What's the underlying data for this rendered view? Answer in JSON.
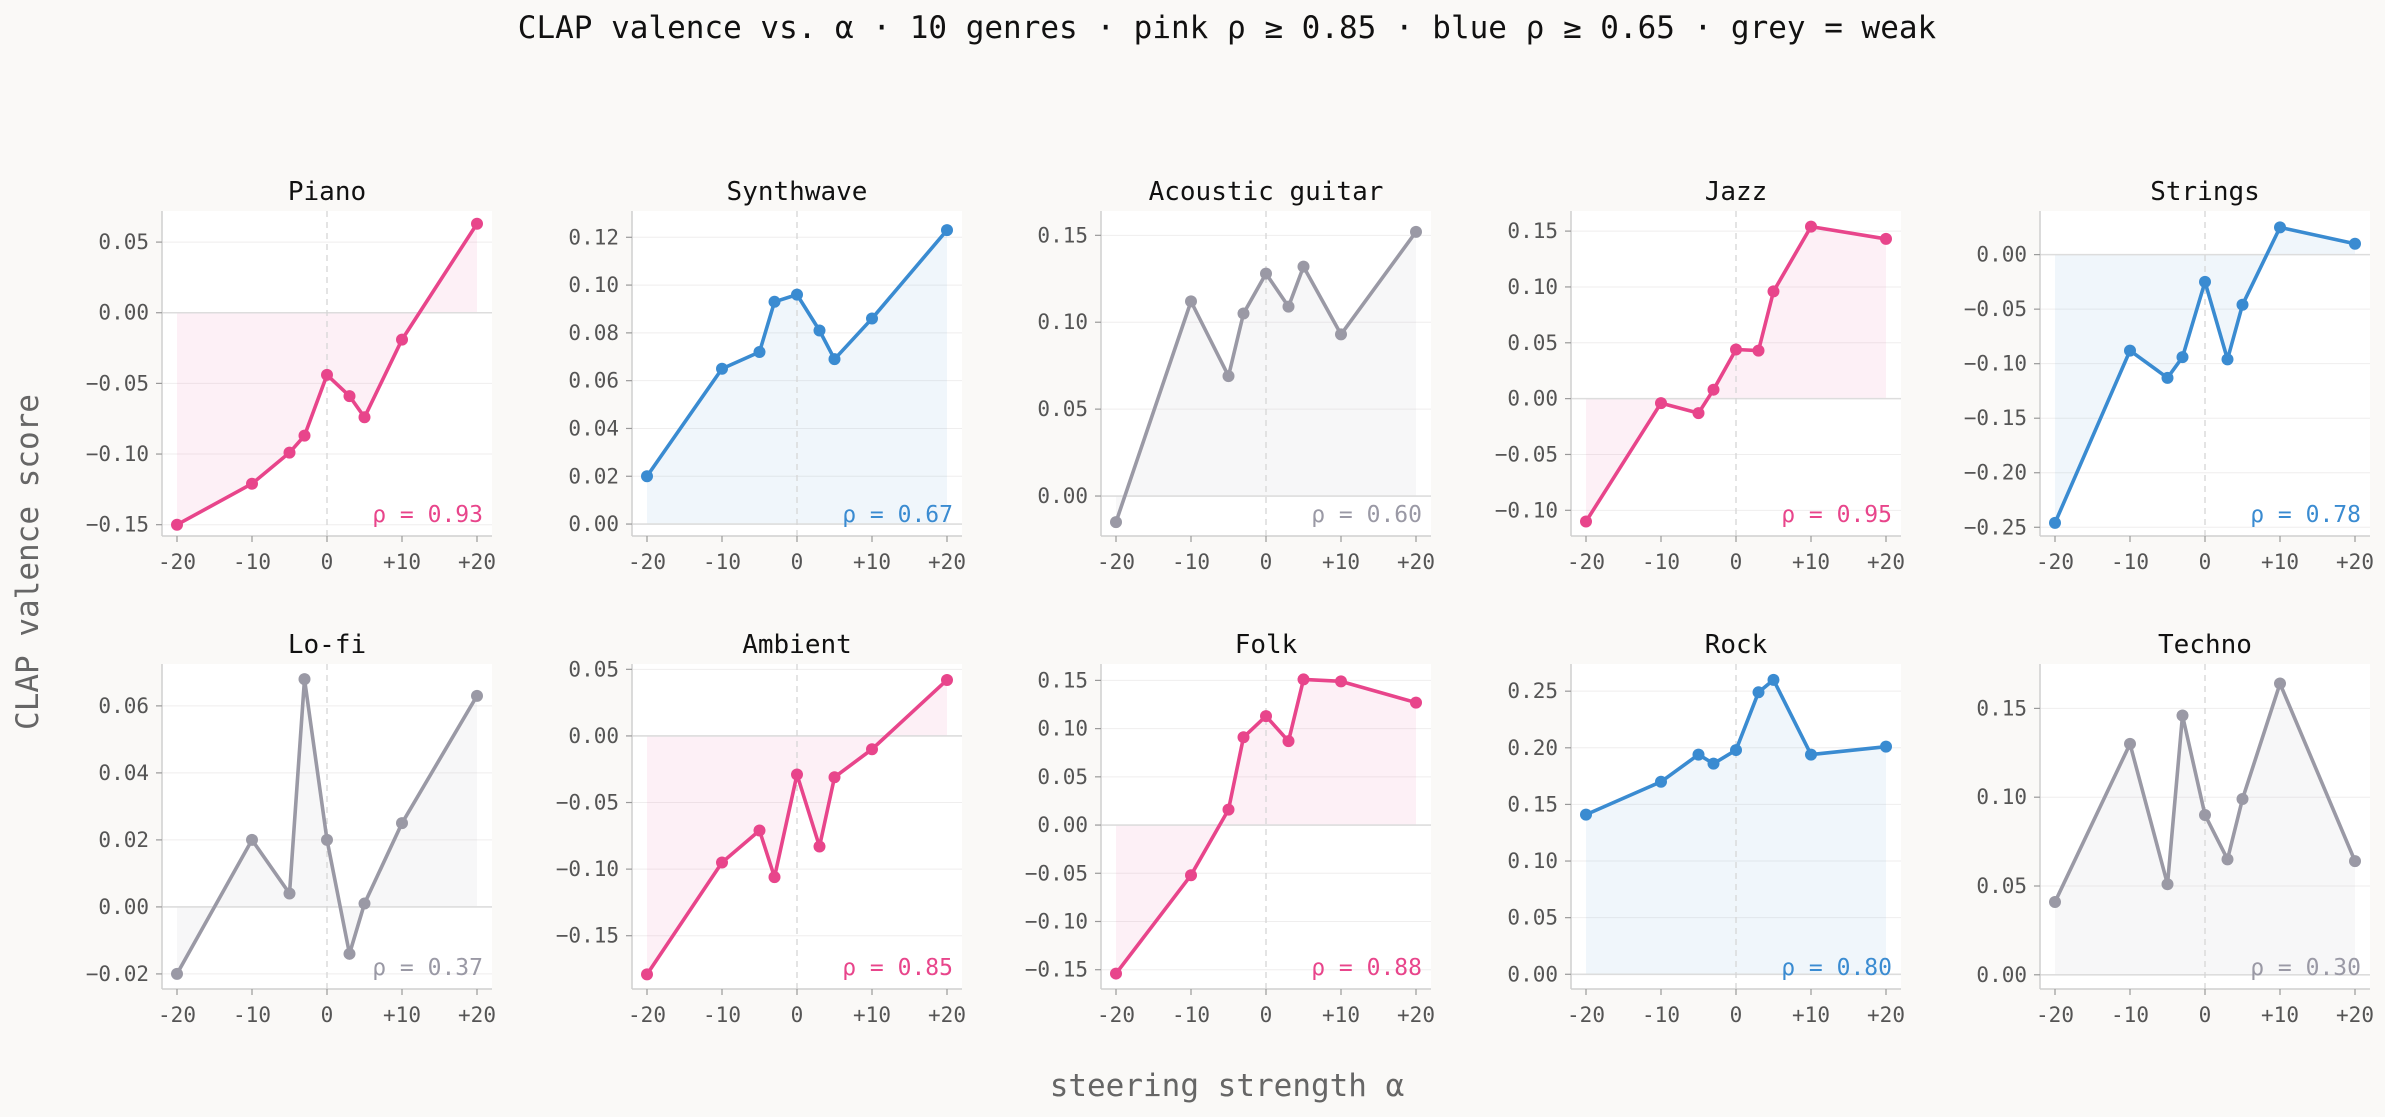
{
  "figure": {
    "suptitle": "CLAP valence vs. α  ·  10 genres  ·  pink ρ ≥ 0.85  ·  blue ρ ≥ 0.65  ·  grey = weak",
    "xlabel": "steering strength α",
    "ylabel": "CLAP valence score"
  },
  "colors": {
    "strong": "#e8458b",
    "moderate": "#3a8bd1",
    "weak": "#9a99a5"
  },
  "chart_data": [
    {
      "type": "line",
      "title": "Piano",
      "strength": "strong",
      "rho_label": "ρ = 0.93",
      "x": [
        -20,
        -10,
        -5,
        -3,
        0,
        3,
        5,
        10,
        20
      ],
      "y": [
        -0.15,
        -0.121,
        -0.099,
        -0.087,
        -0.044,
        -0.059,
        -0.074,
        -0.019,
        0.063
      ],
      "ylim": [
        -0.158,
        0.072
      ],
      "yticks": [
        -0.15,
        -0.1,
        -0.05,
        0.0,
        0.05
      ],
      "ytick_labels": [
        "−0.15",
        "−0.10",
        "−0.05",
        "0.00",
        "0.05"
      ],
      "xticks": [
        -20,
        -10,
        0,
        10,
        20
      ],
      "xtick_labels": [
        "-20",
        "-10",
        "0",
        "+10",
        "+20"
      ],
      "xlim": [
        -22,
        22
      ]
    },
    {
      "type": "line",
      "title": "Synthwave",
      "strength": "moderate",
      "rho_label": "ρ = 0.67",
      "x": [
        -20,
        -10,
        -5,
        -3,
        0,
        3,
        5,
        10,
        20
      ],
      "y": [
        0.02,
        0.065,
        0.072,
        0.093,
        0.096,
        0.081,
        0.069,
        0.086,
        0.123
      ],
      "ylim": [
        -0.005,
        0.131
      ],
      "yticks": [
        0.0,
        0.02,
        0.04,
        0.06,
        0.08,
        0.1,
        0.12
      ],
      "ytick_labels": [
        "0.00",
        "0.02",
        "0.04",
        "0.06",
        "0.08",
        "0.10",
        "0.12"
      ],
      "xticks": [
        -20,
        -10,
        0,
        10,
        20
      ],
      "xtick_labels": [
        "-20",
        "-10",
        "0",
        "+10",
        "+20"
      ],
      "xlim": [
        -22,
        22
      ]
    },
    {
      "type": "line",
      "title": "Acoustic guitar",
      "strength": "weak",
      "rho_label": "ρ = 0.60",
      "x": [
        -20,
        -10,
        -5,
        -3,
        0,
        3,
        5,
        10,
        20
      ],
      "y": [
        -0.015,
        0.112,
        0.069,
        0.105,
        0.128,
        0.109,
        0.132,
        0.093,
        0.152
      ],
      "ylim": [
        -0.023,
        0.164
      ],
      "yticks": [
        0.0,
        0.05,
        0.1,
        0.15
      ],
      "ytick_labels": [
        "0.00",
        "0.05",
        "0.10",
        "0.15"
      ],
      "xticks": [
        -20,
        -10,
        0,
        10,
        20
      ],
      "xtick_labels": [
        "-20",
        "-10",
        "0",
        "+10",
        "+20"
      ],
      "xlim": [
        -22,
        22
      ]
    },
    {
      "type": "line",
      "title": "Jazz",
      "strength": "strong",
      "rho_label": "ρ = 0.95",
      "x": [
        -20,
        -10,
        -5,
        -3,
        0,
        3,
        5,
        10,
        20
      ],
      "y": [
        -0.11,
        -0.004,
        -0.013,
        0.008,
        0.044,
        0.043,
        0.096,
        0.154,
        0.143
      ],
      "ylim": [
        -0.123,
        0.168
      ],
      "yticks": [
        -0.1,
        -0.05,
        0.0,
        0.05,
        0.1,
        0.15
      ],
      "ytick_labels": [
        "−0.10",
        "−0.05",
        "0.00",
        "0.05",
        "0.10",
        "0.15"
      ],
      "xticks": [
        -20,
        -10,
        0,
        10,
        20
      ],
      "xtick_labels": [
        "-20",
        "-10",
        "0",
        "+10",
        "+20"
      ],
      "xlim": [
        -22,
        22
      ]
    },
    {
      "type": "line",
      "title": "Strings",
      "strength": "moderate",
      "rho_label": "ρ = 0.78",
      "x": [
        -20,
        -10,
        -5,
        -3,
        0,
        3,
        5,
        10,
        20
      ],
      "y": [
        -0.246,
        -0.088,
        -0.113,
        -0.094,
        -0.025,
        -0.096,
        -0.046,
        0.025,
        0.01
      ],
      "ylim": [
        -0.258,
        0.04
      ],
      "yticks": [
        -0.25,
        -0.2,
        -0.15,
        -0.1,
        -0.05,
        0.0
      ],
      "ytick_labels": [
        "−0.25",
        "−0.20",
        "−0.15",
        "−0.10",
        "−0.05",
        "0.00"
      ],
      "xticks": [
        -20,
        -10,
        0,
        10,
        20
      ],
      "xtick_labels": [
        "-20",
        "-10",
        "0",
        "+10",
        "+20"
      ],
      "xlim": [
        -22,
        22
      ]
    },
    {
      "type": "line",
      "title": "Lo-fi",
      "strength": "weak",
      "rho_label": "ρ = 0.37",
      "x": [
        -20,
        -10,
        -5,
        -3,
        0,
        3,
        5,
        10,
        20
      ],
      "y": [
        -0.02,
        0.02,
        0.004,
        0.068,
        0.02,
        -0.014,
        0.001,
        0.025,
        0.063
      ],
      "ylim": [
        -0.0245,
        0.0725
      ],
      "yticks": [
        -0.02,
        0.0,
        0.02,
        0.04,
        0.06
      ],
      "ytick_labels": [
        "−0.02",
        "0.00",
        "0.02",
        "0.04",
        "0.06"
      ],
      "xticks": [
        -20,
        -10,
        0,
        10,
        20
      ],
      "xtick_labels": [
        "-20",
        "-10",
        "0",
        "+10",
        "+20"
      ],
      "xlim": [
        -22,
        22
      ]
    },
    {
      "type": "line",
      "title": "Ambient",
      "strength": "strong",
      "rho_label": "ρ = 0.85",
      "x": [
        -20,
        -10,
        -5,
        -3,
        0,
        3,
        5,
        10,
        20
      ],
      "y": [
        -0.179,
        -0.095,
        -0.071,
        -0.106,
        -0.029,
        -0.083,
        -0.031,
        -0.01,
        0.042
      ],
      "ylim": [
        -0.19,
        0.054
      ],
      "yticks": [
        -0.15,
        -0.1,
        -0.05,
        0.0,
        0.05
      ],
      "ytick_labels": [
        "−0.15",
        "−0.10",
        "−0.05",
        "0.00",
        "0.05"
      ],
      "xticks": [
        -20,
        -10,
        0,
        10,
        20
      ],
      "xtick_labels": [
        "-20",
        "-10",
        "0",
        "+10",
        "+20"
      ],
      "xlim": [
        -22,
        22
      ]
    },
    {
      "type": "line",
      "title": "Folk",
      "strength": "strong",
      "rho_label": "ρ = 0.88",
      "x": [
        -20,
        -10,
        -5,
        -3,
        0,
        3,
        5,
        10,
        20
      ],
      "y": [
        -0.154,
        -0.052,
        0.016,
        0.091,
        0.113,
        0.087,
        0.151,
        0.149,
        0.127
      ],
      "ylim": [
        -0.17,
        0.167
      ],
      "yticks": [
        -0.15,
        -0.1,
        -0.05,
        0.0,
        0.05,
        0.1,
        0.15
      ],
      "ytick_labels": [
        "−0.15",
        "−0.10",
        "−0.05",
        "0.00",
        "0.05",
        "0.10",
        "0.15"
      ],
      "xticks": [
        -20,
        -10,
        0,
        10,
        20
      ],
      "xtick_labels": [
        "-20",
        "-10",
        "0",
        "+10",
        "+20"
      ],
      "xlim": [
        -22,
        22
      ]
    },
    {
      "type": "line",
      "title": "Rock",
      "strength": "moderate",
      "rho_label": "ρ = 0.80",
      "x": [
        -20,
        -10,
        -5,
        -3,
        0,
        3,
        5,
        10,
        20
      ],
      "y": [
        0.141,
        0.17,
        0.194,
        0.186,
        0.198,
        0.249,
        0.26,
        0.194,
        0.201
      ],
      "ylim": [
        -0.013,
        0.274
      ],
      "yticks": [
        0.0,
        0.05,
        0.1,
        0.15,
        0.2,
        0.25
      ],
      "ytick_labels": [
        "0.00",
        "0.05",
        "0.10",
        "0.15",
        "0.20",
        "0.25"
      ],
      "xticks": [
        -20,
        -10,
        0,
        10,
        20
      ],
      "xtick_labels": [
        "-20",
        "-10",
        "0",
        "+10",
        "+20"
      ],
      "xlim": [
        -22,
        22
      ]
    },
    {
      "type": "line",
      "title": "Techno",
      "strength": "weak",
      "rho_label": "ρ = 0.30",
      "x": [
        -20,
        -10,
        -5,
        -3,
        0,
        3,
        5,
        10,
        20
      ],
      "y": [
        0.041,
        0.13,
        0.051,
        0.146,
        0.09,
        0.065,
        0.099,
        0.164,
        0.064
      ],
      "ylim": [
        -0.008,
        0.175
      ],
      "yticks": [
        0.0,
        0.05,
        0.1,
        0.15
      ],
      "ytick_labels": [
        "0.00",
        "0.05",
        "0.10",
        "0.15"
      ],
      "xticks": [
        -20,
        -10,
        0,
        10,
        20
      ],
      "xtick_labels": [
        "-20",
        "-10",
        "0",
        "+10",
        "+20"
      ],
      "xlim": [
        -22,
        22
      ]
    }
  ]
}
